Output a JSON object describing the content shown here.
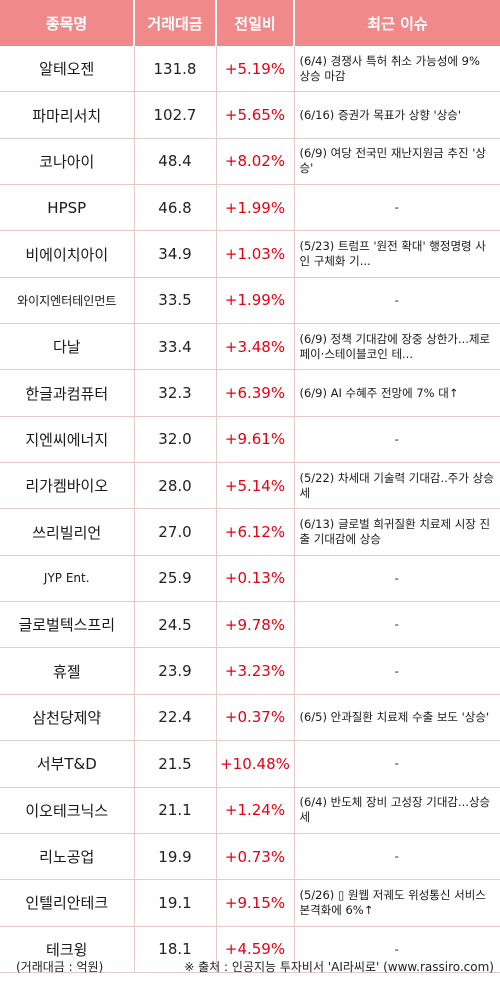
{
  "headers": [
    "종목명",
    "거래대금",
    "전일비",
    "최근 이슈"
  ],
  "rows": [
    {
      "name": "알테오젠",
      "volume": "131.8",
      "change": "+5.19%",
      "issue": "(6/4) 경쟁사 특허 취소 가능성에 9% 상승 마감"
    },
    {
      "name": "파마리서치",
      "volume": "102.7",
      "change": "+5.65%",
      "issue": "(6/16) 증권가 목표가 상향 '상승'"
    },
    {
      "name": "코나아이",
      "volume": "48.4",
      "change": "+8.02%",
      "issue": "(6/9) 여당 전국민 재난지원금 추진 '상승'"
    },
    {
      "name": "HPSP",
      "volume": "46.8",
      "change": "+1.99%",
      "issue": "-"
    },
    {
      "name": "비에이치아이",
      "volume": "34.9",
      "change": "+1.03%",
      "issue": "(5/23) 트럼프 '원전 확대' 행정명령 사인 구체화 기..."
    },
    {
      "name": "와이지엔터테인먼트",
      "volume": "33.5",
      "change": "+1.99%",
      "issue": "-"
    },
    {
      "name": "다날",
      "volume": "33.4",
      "change": "+3.48%",
      "issue": "(6/9) 정책 기대감에 장중 상한가...제로페이·스테이블코인 테..."
    },
    {
      "name": "한글과컴퓨터",
      "volume": "32.3",
      "change": "+6.39%",
      "issue": "(6/9) AI 수혜주 전망에 7% 대↑"
    },
    {
      "name": "지엔씨에너지",
      "volume": "32.0",
      "change": "+9.61%",
      "issue": "-"
    },
    {
      "name": "리가켐바이오",
      "volume": "28.0",
      "change": "+5.14%",
      "issue": "(5/22) 차세대 기술력 기대감..주가 상승세"
    },
    {
      "name": "쓰리빌리언",
      "volume": "27.0",
      "change": "+6.12%",
      "issue": "(6/13) 글로벌 희귀질환 치료제 시장 진출 기대감에 상승"
    },
    {
      "name": "JYP Ent.",
      "volume": "25.9",
      "change": "+0.13%",
      "issue": "-"
    },
    {
      "name": "글로벌텍스프리",
      "volume": "24.5",
      "change": "+9.78%",
      "issue": "-"
    },
    {
      "name": "휴젤",
      "volume": "23.9",
      "change": "+3.23%",
      "issue": "-"
    },
    {
      "name": "삼천당제약",
      "volume": "22.4",
      "change": "+0.37%",
      "issue": "(6/5) 안과질환 치료제 수출 보도 '상승'"
    },
    {
      "name": "서부T&D",
      "volume": "21.5",
      "change": "+10.48%",
      "issue": "-"
    },
    {
      "name": "이오테크닉스",
      "volume": "21.1",
      "change": "+1.24%",
      "issue": "(6/4) 반도체 장비 고성장 기대감...상승세"
    },
    {
      "name": "리노공업",
      "volume": "19.9",
      "change": "+0.73%",
      "issue": "-"
    },
    {
      "name": "인텔리안테크",
      "volume": "19.1",
      "change": "+9.15%",
      "issue": "(5/26) ▯ 원웹 저궤도 위성통신 서비스 본격화에 6%↑"
    },
    {
      "name": "테크윙",
      "volume": "18.1",
      "change": "+4.59%",
      "issue": "-"
    }
  ],
  "footer": {
    "unit": "(거래대금 : 억원)",
    "source": "※ 출처 : 인공지능 투자비서 'AI라씨로' (www.rassiro.com)"
  },
  "colors": {
    "header_bg": "#f08a8a",
    "change_text": "#e60012"
  }
}
